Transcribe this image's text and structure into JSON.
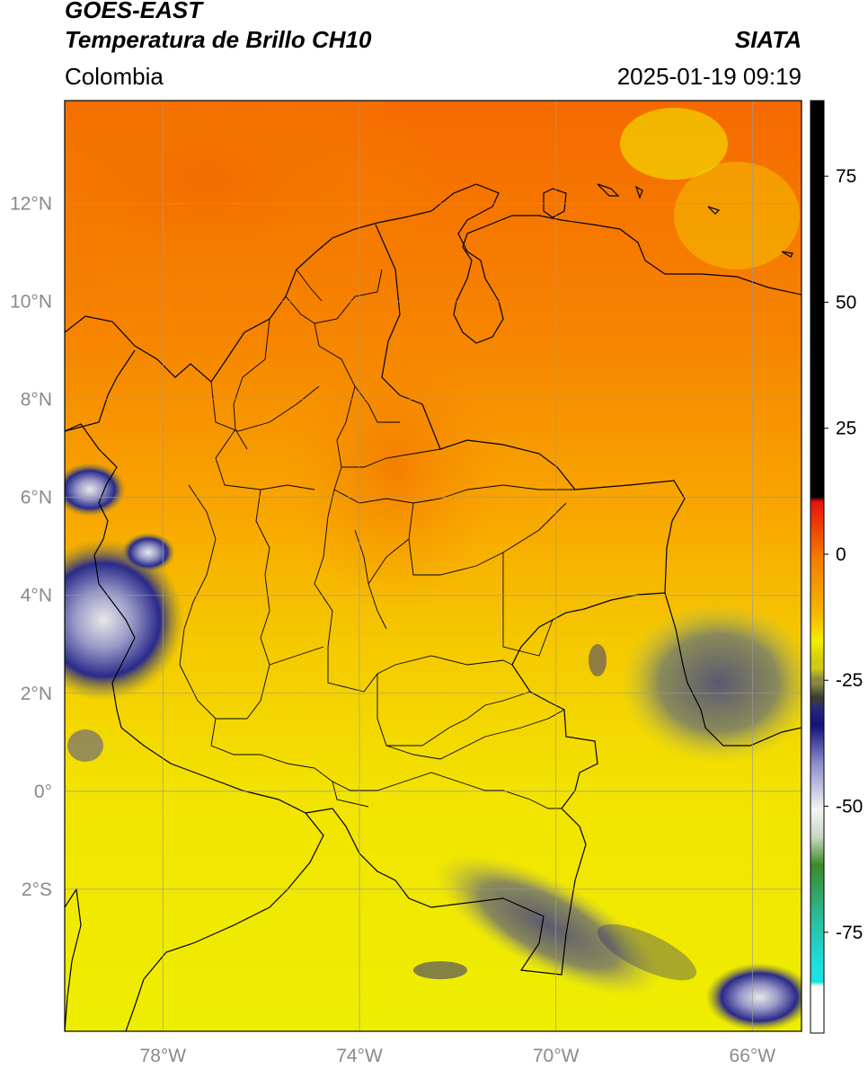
{
  "header": {
    "satellite": "GOES-EAST",
    "product": "Temperatura de Brillo CH10",
    "region": "Colombia",
    "brand": "SIATA",
    "datetime": "2025-01-19 09:19"
  },
  "map": {
    "lat_labels": [
      "12°N",
      "10°N",
      "8°N",
      "6°N",
      "4°N",
      "2°N",
      "0°",
      "2°S"
    ],
    "lat_values": [
      12,
      10,
      8,
      6,
      4,
      2,
      0,
      -2
    ],
    "lon_labels": [
      "78°W",
      "74°W",
      "70°W",
      "66°W"
    ],
    "lon_values": [
      -78,
      -74,
      -70,
      -66
    ],
    "extent": {
      "lon_min": -80,
      "lon_max": -65,
      "lat_min": -4.9,
      "lat_max": 14.1
    }
  },
  "colorbar": {
    "ticks": [
      "75",
      "50",
      "25",
      "0",
      "-25",
      "-50",
      "-75"
    ],
    "tick_values": [
      75,
      50,
      25,
      0,
      -25,
      -50,
      -75
    ],
    "range": [
      -95,
      90
    ],
    "colors": {
      "hot": "#000000",
      "red": "#e8120c",
      "orange": "#f57a00",
      "yellow": "#f2ee00",
      "olive": "#8c8a3c",
      "navy": "#1a1a7a",
      "white": "#f4f4f4",
      "green": "#3a8a2a",
      "teal": "#2abfa0",
      "cyan": "#1de0e0"
    }
  }
}
